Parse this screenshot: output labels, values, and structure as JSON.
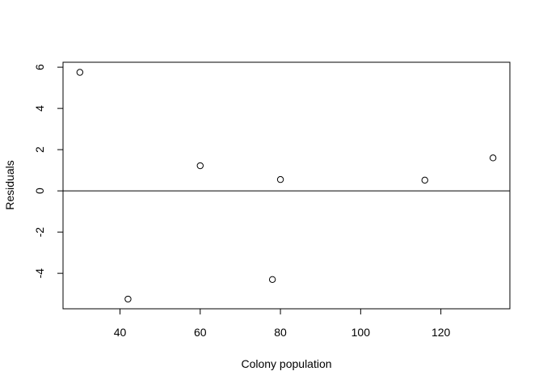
{
  "chart_data": {
    "type": "scatter",
    "title": "",
    "xlabel": "Colony population",
    "ylabel": "Residuals",
    "xlim": [
      25.8,
      137.2
    ],
    "ylim": [
      -5.72,
      6.24
    ],
    "xticks": [
      40,
      60,
      80,
      100,
      120
    ],
    "yticks": [
      -4,
      -2,
      0,
      2,
      4,
      6
    ],
    "grid": false,
    "reference_line": {
      "y": 0
    },
    "points": [
      {
        "x": 30,
        "y": 5.75
      },
      {
        "x": 42,
        "y": -5.25
      },
      {
        "x": 60,
        "y": 1.22
      },
      {
        "x": 78,
        "y": -4.3
      },
      {
        "x": 80,
        "y": 0.55
      },
      {
        "x": 116,
        "y": 0.52
      },
      {
        "x": 133,
        "y": 1.6
      }
    ],
    "colors": {
      "axis": "#000000",
      "marker_stroke": "#000000",
      "background": "#ffffff"
    }
  }
}
